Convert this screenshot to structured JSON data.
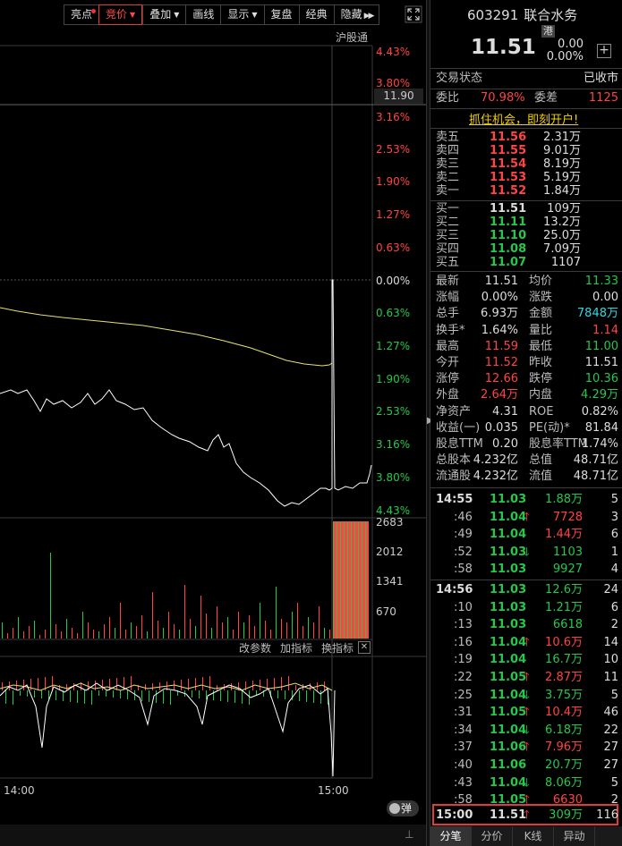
{
  "toolbar": {
    "items": [
      "亮点",
      "竞价",
      "叠加",
      "画线",
      "显示",
      "复盘",
      "经典",
      "隐藏"
    ]
  },
  "chart": {
    "market_tag": "沪股通",
    "price_marker": "11.90",
    "pct_axis_top": [
      "4.43%",
      "3.80%",
      "3.16%",
      "2.53%",
      "1.90%",
      "1.27%",
      "0.63%",
      "0.00%"
    ],
    "pct_axis_bottom": [
      "0.63%",
      "1.27%",
      "1.90%",
      "2.53%",
      "3.16%",
      "3.80%",
      "4.43%"
    ],
    "volume_axis": [
      "2683",
      "2012",
      "1341",
      "670"
    ],
    "indicator_toolbar": [
      "改参数",
      "加指标",
      "换指标"
    ],
    "time_labels": [
      "14:00",
      "15:00"
    ],
    "bullet_label": "弹"
  },
  "quote": {
    "code": "603291",
    "name": "联合水务",
    "badge": "港",
    "last_price": "11.51",
    "change": "0.00",
    "change_pct": "0.00%",
    "status_label": "交易状态",
    "status_value": "已收市",
    "weibi_label": "委比",
    "weibi_value": "70.98%",
    "weicha_label": "委差",
    "weicha_value": "1125",
    "promo": "抓住机会，即刻开户!"
  },
  "order_book": {
    "asks": [
      {
        "label": "卖五",
        "price": "11.56",
        "vol": "2.31万"
      },
      {
        "label": "卖四",
        "price": "11.55",
        "vol": "9.01万"
      },
      {
        "label": "卖三",
        "price": "11.54",
        "vol": "8.19万"
      },
      {
        "label": "卖二",
        "price": "11.53",
        "vol": "5.19万"
      },
      {
        "label": "卖一",
        "price": "11.52",
        "vol": "1.84万"
      }
    ],
    "bids": [
      {
        "label": "买一",
        "price": "11.51",
        "vol": "109万"
      },
      {
        "label": "买二",
        "price": "11.11",
        "vol": "13.2万"
      },
      {
        "label": "买三",
        "price": "11.10",
        "vol": "25.0万"
      },
      {
        "label": "买四",
        "price": "11.08",
        "vol": "7.09万"
      },
      {
        "label": "买五",
        "price": "11.07",
        "vol": "1107"
      }
    ]
  },
  "stats": [
    {
      "l1": "最新",
      "v1": "11.51",
      "c1": "white",
      "l2": "均价",
      "v2": "11.33",
      "c2": "green"
    },
    {
      "l1": "涨幅",
      "v1": "0.00%",
      "c1": "white",
      "l2": "涨跌",
      "v2": "0.00",
      "c2": "white"
    },
    {
      "l1": "总手",
      "v1": "6.93万",
      "c1": "white",
      "l2": "金额",
      "v2": "7848万",
      "c2": "cyan"
    },
    {
      "l1": "换手*",
      "v1": "1.64%",
      "c1": "white",
      "l2": "量比",
      "v2": "1.14",
      "c2": "red"
    },
    {
      "l1": "最高",
      "v1": "11.59",
      "c1": "red",
      "l2": "最低",
      "v2": "11.00",
      "c2": "green"
    },
    {
      "l1": "今开",
      "v1": "11.52",
      "c1": "red",
      "l2": "昨收",
      "v2": "11.51",
      "c2": "white"
    },
    {
      "l1": "涨停",
      "v1": "12.66",
      "c1": "red",
      "l2": "跌停",
      "v2": "10.36",
      "c2": "green"
    },
    {
      "l1": "外盘",
      "v1": "2.64万",
      "c1": "red",
      "l2": "内盘",
      "v2": "4.29万",
      "c2": "green"
    },
    {
      "l1": "净资产",
      "v1": "4.31",
      "c1": "white",
      "l2": "ROE",
      "v2": "0.82%",
      "c2": "white"
    },
    {
      "l1": "收益(一)",
      "v1": "0.035",
      "c1": "white",
      "l2": "PE(动)*",
      "v2": "81.84",
      "c2": "white"
    },
    {
      "l1": "股息TTM",
      "v1": "0.20",
      "c1": "white",
      "l2": "股息率TTM",
      "v2": "1.74%",
      "c2": "white"
    },
    {
      "l1": "总股本",
      "v1": "4.232亿",
      "c1": "white",
      "l2": "总值",
      "v2": "48.71亿",
      "c2": "white"
    },
    {
      "l1": "流通股",
      "v1": "4.232亿",
      "c1": "white",
      "l2": "流值",
      "v2": "48.71亿",
      "c2": "white"
    }
  ],
  "ticks": [
    {
      "time": "14:55",
      "price": "11.03",
      "arrow": "",
      "vol": "1.88万",
      "vcolor": "green",
      "n": "5",
      "bold": true
    },
    {
      "time": ":46",
      "price": "11.04",
      "arrow": "up",
      "vol": "7728",
      "vcolor": "red",
      "n": "3",
      "bold": false
    },
    {
      "time": ":49",
      "price": "11.04",
      "arrow": "",
      "vol": "1.44万",
      "vcolor": "red",
      "n": "6",
      "bold": false
    },
    {
      "time": ":52",
      "price": "11.03",
      "arrow": "down",
      "vol": "1103",
      "vcolor": "green",
      "n": "1",
      "bold": false
    },
    {
      "time": ":58",
      "price": "11.03",
      "arrow": "",
      "vol": "9927",
      "vcolor": "green",
      "n": "4",
      "bold": false
    },
    {
      "time": "14:56",
      "price": "11.03",
      "arrow": "",
      "vol": "12.6万",
      "vcolor": "green",
      "n": "24",
      "bold": true
    },
    {
      "time": ":10",
      "price": "11.03",
      "arrow": "",
      "vol": "1.21万",
      "vcolor": "green",
      "n": "6",
      "bold": false
    },
    {
      "time": ":13",
      "price": "11.03",
      "arrow": "",
      "vol": "6618",
      "vcolor": "green",
      "n": "2",
      "bold": false
    },
    {
      "time": ":16",
      "price": "11.04",
      "arrow": "up",
      "vol": "10.6万",
      "vcolor": "red",
      "n": "14",
      "bold": false
    },
    {
      "time": ":19",
      "price": "11.04",
      "arrow": "",
      "vol": "16.7万",
      "vcolor": "green",
      "n": "10",
      "bold": false
    },
    {
      "time": ":22",
      "price": "11.05",
      "arrow": "up",
      "vol": "2.87万",
      "vcolor": "red",
      "n": "11",
      "bold": false
    },
    {
      "time": ":25",
      "price": "11.04",
      "arrow": "down",
      "vol": "3.75万",
      "vcolor": "green",
      "n": "5",
      "bold": false
    },
    {
      "time": ":31",
      "price": "11.05",
      "arrow": "up",
      "vol": "10.4万",
      "vcolor": "red",
      "n": "46",
      "bold": false
    },
    {
      "time": ":34",
      "price": "11.04",
      "arrow": "down",
      "vol": "6.18万",
      "vcolor": "green",
      "n": "22",
      "bold": false
    },
    {
      "time": ":37",
      "price": "11.06",
      "arrow": "up",
      "vol": "7.96万",
      "vcolor": "red",
      "n": "27",
      "bold": false
    },
    {
      "time": ":40",
      "price": "11.06",
      "arrow": "",
      "vol": "20.7万",
      "vcolor": "green",
      "n": "27",
      "bold": false
    },
    {
      "time": ":43",
      "price": "11.04",
      "arrow": "down",
      "vol": "8.06万",
      "vcolor": "green",
      "n": "5",
      "bold": false
    },
    {
      "time": ":58",
      "price": "11.05",
      "arrow": "up",
      "vol": "6630",
      "vcolor": "red",
      "n": "2",
      "bold": false
    }
  ],
  "last_tick": {
    "time": "15:00",
    "price": "11.51",
    "arrow": "up",
    "vol": "309万",
    "n": "116"
  },
  "bottom_tabs": [
    "分笔",
    "分价",
    "K线",
    "异动"
  ]
}
